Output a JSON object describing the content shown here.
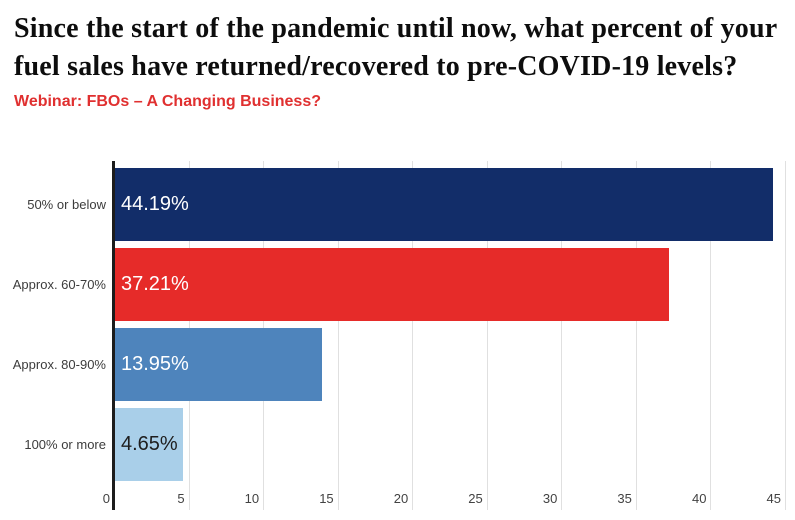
{
  "header": {
    "title": "Since the start of the pandemic until now, what percent of your fuel sales have returned/recovered to pre-COVID-19 levels?",
    "subtitle": "Webinar: FBOs – A Changing Business?"
  },
  "colors": {
    "background": "#ffffff",
    "title": "#0d0d0d",
    "subtitle_accent": "#e03030"
  },
  "chart_data": {
    "type": "bar",
    "orientation": "horizontal",
    "title": "Since the start of the pandemic until now, what percent of your fuel sales have returned/recovered to pre-COVID-19 levels?",
    "subtitle": "Webinar: FBOs – A Changing Business?",
    "categories": [
      "50% or below",
      "Approx. 60-70%",
      "Approx. 80-90%",
      "100% or more"
    ],
    "values": [
      44.19,
      37.21,
      13.95,
      4.65
    ],
    "value_labels": [
      "44.19%",
      "37.21%",
      "13.95%",
      "4.65%"
    ],
    "bar_colors": [
      "#122d69",
      "#e62b29",
      "#4e84bc",
      "#a9cfe9"
    ],
    "value_label_colors": [
      "#ffffff",
      "#ffffff",
      "#ffffff",
      "#1e1e1e"
    ],
    "x_ticks": [
      0,
      5,
      10,
      15,
      20,
      25,
      30,
      35,
      40,
      45
    ],
    "xlim": [
      0,
      45.7
    ],
    "xlabel": "",
    "ylabel": "",
    "grid": true,
    "legend": "none",
    "colors": {
      "gridline": "#e0e0e0",
      "axis": "#1c1c1c",
      "tick_label": "#424242",
      "category_label": "#3c3c3c"
    }
  }
}
